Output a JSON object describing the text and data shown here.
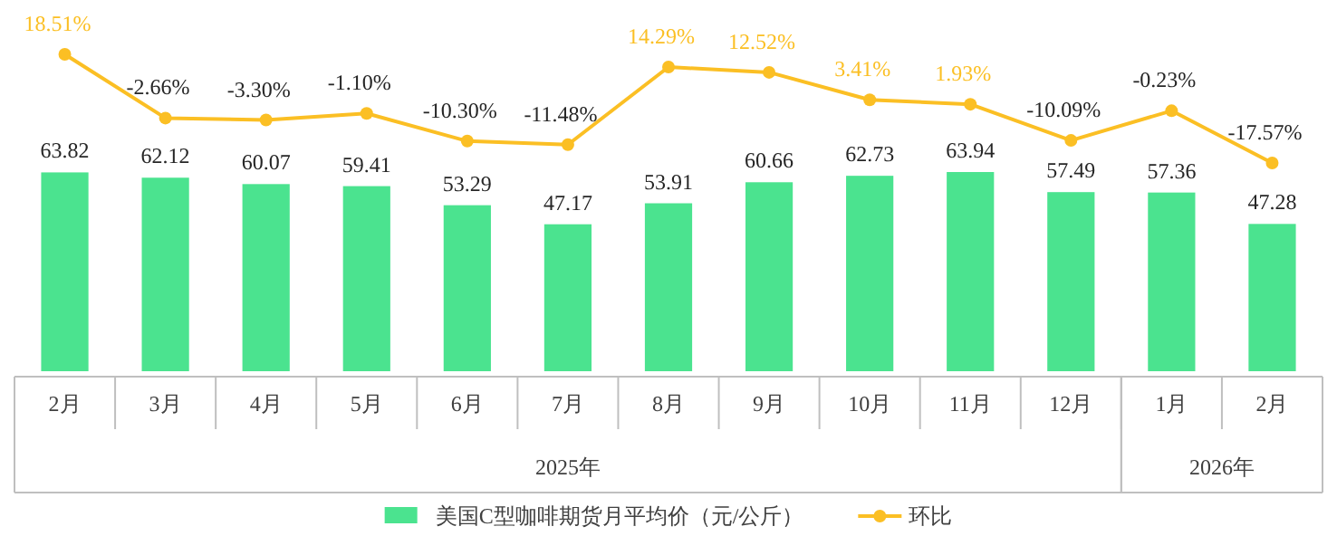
{
  "chart_data": [
    {
      "type": "line",
      "categories": [
        null,
        null,
        null,
        null,
        null,
        null,
        null,
        null,
        null,
        null,
        null,
        null,
        null
      ],
      "series": [
        {
          "name": "环比",
          "color": "#fbbf24",
          "marker": "circle",
          "values": [
            18.51,
            -2.66,
            -3.3,
            -1.1,
            -10.3,
            -11.48,
            14.29,
            12.52,
            3.41,
            1.93,
            -10.09,
            -0.23,
            -17.57
          ],
          "value_labels": [
            "18.51%",
            "-2.66%",
            "-3.30%",
            "-1.10%",
            "-10.30%",
            "-11.48%",
            "14.29%",
            "12.52%",
            "3.41%",
            "1.93%",
            "-10.09%",
            "-0.23%",
            "-17.57%"
          ]
        }
      ],
      "legend": "bottom"
    },
    {
      "type": "bar",
      "categories": [
        "2月",
        "3月",
        "4月",
        "5月",
        "6月",
        "7月",
        "8月",
        "9月",
        "10月",
        "11月",
        "12月",
        "1月",
        "2月"
      ],
      "series": [
        {
          "name": "美国C型咖啡期货月平均价（元/公斤）",
          "color": "#4be38f",
          "values": [
            63.82,
            62.12,
            60.07,
            59.41,
            53.29,
            47.17,
            53.91,
            60.66,
            62.73,
            63.94,
            57.49,
            57.36,
            47.28
          ]
        }
      ],
      "data_labels": true,
      "annotations": [
        "2025年",
        "2026年"
      ],
      "legend": "bottom"
    }
  ]
}
